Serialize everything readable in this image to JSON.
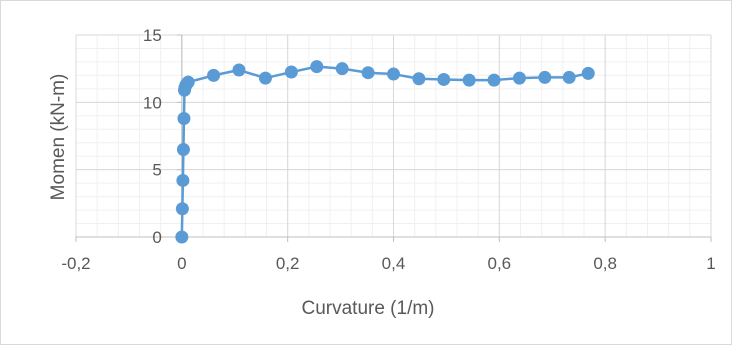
{
  "chart_data": {
    "type": "scatter",
    "title": "",
    "xlabel": "Curvature (1/m)",
    "ylabel": "Momen (kN-m)",
    "xlim": [
      -0.2,
      1
    ],
    "ylim": [
      0,
      15
    ],
    "x_ticks": [
      -0.2,
      0,
      0.2,
      0.4,
      0.6,
      0.8,
      1
    ],
    "x_tick_labels": [
      "-0,2",
      "0",
      "0,2",
      "0,4",
      "0,6",
      "0,8",
      "1"
    ],
    "y_ticks": [
      0,
      5,
      10,
      15
    ],
    "y_tick_labels": [
      "0",
      "5",
      "10",
      "15"
    ],
    "x_minor_step": 0.04,
    "y_minor_step": 1,
    "grid": true,
    "legend": "none",
    "line_color": "#5b9bd5",
    "marker_color": "#5b9bd5",
    "series": [
      {
        "points": [
          [
            0,
            0
          ],
          [
            0.001,
            2.1
          ],
          [
            0.002,
            4.2
          ],
          [
            0.003,
            6.5
          ],
          [
            0.004,
            8.8
          ],
          [
            0.005,
            10.9
          ],
          [
            0.006,
            11.1
          ],
          [
            0.008,
            11.3
          ],
          [
            0.012,
            11.5
          ],
          [
            0.06,
            12.0
          ],
          [
            0.108,
            12.4
          ],
          [
            0.158,
            11.8
          ],
          [
            0.207,
            12.25
          ],
          [
            0.255,
            12.65
          ],
          [
            0.303,
            12.5
          ],
          [
            0.352,
            12.2
          ],
          [
            0.4,
            12.1
          ],
          [
            0.448,
            11.75
          ],
          [
            0.495,
            11.7
          ],
          [
            0.543,
            11.65
          ],
          [
            0.59,
            11.65
          ],
          [
            0.638,
            11.8
          ],
          [
            0.686,
            11.85
          ],
          [
            0.732,
            11.85
          ],
          [
            0.768,
            12.15
          ]
        ]
      }
    ]
  }
}
